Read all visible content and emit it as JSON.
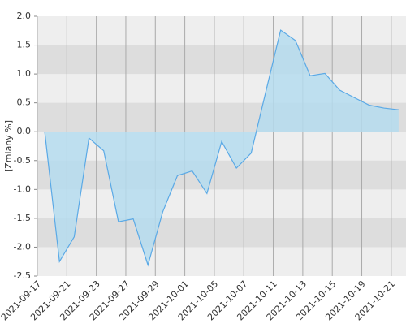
{
  "chart_data": {
    "type": "area",
    "y_label": "[Zmiany %]",
    "categories": [
      "2021-09-17",
      null,
      "2021-09-21",
      null,
      "2021-09-23",
      null,
      "2021-09-27",
      null,
      "2021-09-29",
      null,
      "2021-10-01",
      null,
      "2021-10-05",
      null,
      "2021-10-07",
      null,
      "2021-10-11",
      null,
      "2021-10-13",
      null,
      "2021-10-15",
      null,
      "2021-10-19",
      null,
      "2021-10-21"
    ],
    "values": [
      0,
      -2.25,
      -1.82,
      -0.11,
      -0.33,
      -1.56,
      -1.51,
      -2.31,
      -1.39,
      -0.76,
      -0.68,
      -1.07,
      -0.17,
      -0.63,
      -0.37,
      0.7,
      1.76,
      1.58,
      0.97,
      1.01,
      0.72,
      0.59,
      0.46,
      0.41,
      0.38
    ],
    "color": "#5aa9e6",
    "fill": "#b5dcef",
    "ylim": [
      -2.5,
      2.0
    ],
    "yticks": [
      {
        "value": -2.5,
        "label": "-2.5"
      },
      {
        "value": -2,
        "label": "-2.0"
      },
      {
        "value": -1.5,
        "label": "-1.5"
      },
      {
        "value": -1,
        "label": "-1.0"
      },
      {
        "value": -0.5,
        "label": "-0.5"
      },
      {
        "value": 0,
        "label": "0.0"
      },
      {
        "value": 0.5,
        "label": "0.5"
      },
      {
        "value": 1,
        "label": "1.0"
      },
      {
        "value": 1.5,
        "label": "1.5"
      },
      {
        "value": 2,
        "label": "2.0"
      }
    ],
    "grid": true
  }
}
